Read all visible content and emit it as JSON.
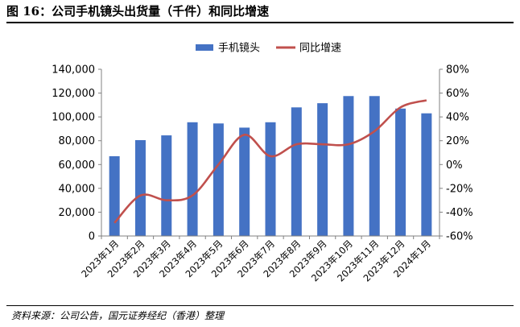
{
  "figure": {
    "title": "图 16：公司手机镜头出货量（千件）和同比增速",
    "source": "资料来源：公司公告，国元证券经纪（香港）整理"
  },
  "colors": {
    "bar": "#4472C4",
    "line": "#C0504D",
    "axis": "#808080"
  },
  "chart_data": {
    "type": "bar",
    "categories": [
      "2023年1月",
      "2023年2月",
      "2023年3月",
      "2023年4月",
      "2023年5月",
      "2023年6月",
      "2023年7月",
      "2023年8月",
      "2023年9月",
      "2023年10月",
      "2023年11月",
      "2023年12月",
      "2024年1月"
    ],
    "series": [
      {
        "name": "手机镜头",
        "type": "bar",
        "axis": "left",
        "values": [
          67000,
          80500,
          84500,
          95500,
          94500,
          91000,
          95500,
          108000,
          111500,
          117500,
          117500,
          107000,
          103000
        ]
      },
      {
        "name": "同比增速",
        "type": "line",
        "axis": "right",
        "values": [
          -49,
          -26,
          -30,
          -26,
          0,
          25,
          7,
          17,
          17,
          17,
          28,
          48,
          54
        ]
      }
    ],
    "left_axis": {
      "min": 0,
      "max": 140000,
      "ticks": [
        "0",
        "20,000",
        "40,000",
        "60,000",
        "80,000",
        "100,000",
        "120,000",
        "140,000"
      ]
    },
    "right_axis": {
      "min": -60,
      "max": 80,
      "ticks": [
        "-60%",
        "-40%",
        "-20%",
        "0%",
        "20%",
        "40%",
        "60%",
        "80%"
      ]
    },
    "legend_position": "top-center",
    "grid": false
  }
}
